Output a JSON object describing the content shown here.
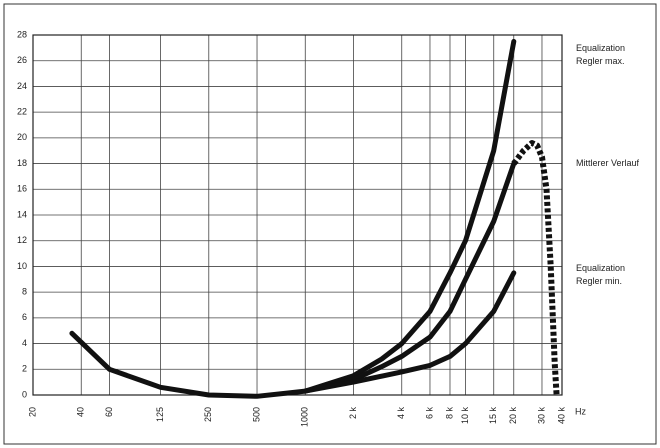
{
  "chart_data": {
    "type": "line",
    "xscale": "log",
    "grid": true,
    "xlabel": "Hz",
    "xlim": [
      20,
      40000
    ],
    "ylim": [
      0,
      28
    ],
    "xticks": [
      20,
      40,
      60,
      125,
      250,
      500,
      1000,
      {
        "value": 2000,
        "label": "2 k"
      },
      {
        "value": 4000,
        "label": "4 k"
      },
      {
        "value": 6000,
        "label": "6 k"
      },
      {
        "value": 8000,
        "label": "8 k"
      },
      {
        "value": 10000,
        "label": "10 k"
      },
      {
        "value": 15000,
        "label": "15 k"
      },
      {
        "value": 20000,
        "label": "20 k"
      },
      {
        "value": 30000,
        "label": "30 k"
      },
      {
        "value": 40000,
        "label": "40 k"
      }
    ],
    "yticks": [
      0,
      2,
      4,
      6,
      8,
      10,
      12,
      14,
      16,
      18,
      20,
      22,
      24,
      26,
      28
    ],
    "series": [
      {
        "name": "Equalization Regler max.",
        "color": "#111",
        "dashed": false,
        "x": [
          1000,
          2000,
          3000,
          4000,
          6000,
          8000,
          10000,
          15000,
          20000
        ],
        "values": [
          0.3,
          1.5,
          2.8,
          4,
          6.5,
          9.5,
          12,
          19,
          27.5
        ]
      },
      {
        "name": "Mittlerer Verlauf",
        "color": "#111",
        "dashed": false,
        "x": [
          1000,
          2000,
          3000,
          4000,
          6000,
          8000,
          10000,
          15000,
          20000
        ],
        "values": [
          0.3,
          1.2,
          2.2,
          3,
          4.5,
          6.5,
          9,
          13.5,
          18
        ]
      },
      {
        "name": "Equalization Regler min.",
        "color": "#111",
        "dashed": false,
        "x": [
          35,
          60,
          125,
          250,
          500,
          1000,
          2000,
          4000,
          6000,
          8000,
          10000,
          15000,
          20000
        ],
        "values": [
          4.8,
          2,
          0.6,
          0,
          -0.1,
          0.3,
          1,
          1.8,
          2.3,
          3,
          4,
          6.5,
          9.5
        ]
      },
      {
        "name": null,
        "color": "#111",
        "dashed": true,
        "x": [
          20000,
          23000,
          26000,
          28000,
          30000,
          32000,
          34000,
          36000,
          37000
        ],
        "values": [
          18,
          19,
          19.6,
          19.4,
          18.5,
          16,
          10,
          2.5,
          0
        ]
      }
    ]
  }
}
